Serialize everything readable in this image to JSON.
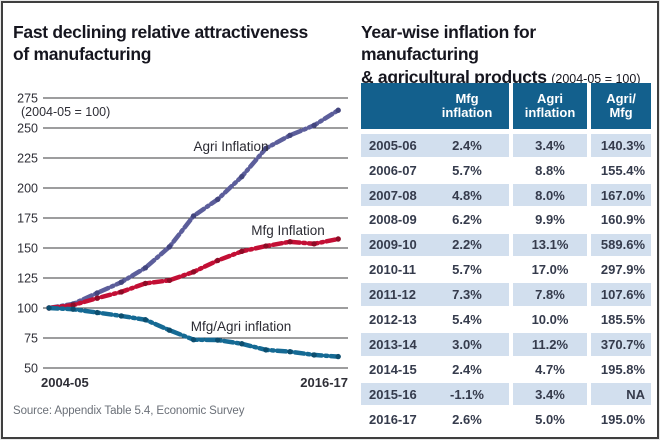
{
  "left_panel": {
    "title_line1": "Fast declining relative attractiveness",
    "title_line2": "of manufacturing",
    "source": "Source: Appendix Table 5.4, Economic Survey"
  },
  "chart_data": {
    "type": "line",
    "title": "Fast declining relative attractiveness of manufacturing",
    "note": "(2004-05 = 100)",
    "x": [
      "2004-05",
      "2005-06",
      "2006-07",
      "2007-08",
      "2008-09",
      "2009-10",
      "2010-11",
      "2011-12",
      "2012-13",
      "2013-14",
      "2014-15",
      "2015-16",
      "2016-17"
    ],
    "x_axis_shown_labels": [
      "2004-05",
      "2016-17"
    ],
    "ylim": [
      50,
      275
    ],
    "yticks": [
      275,
      250,
      225,
      200,
      175,
      150,
      125,
      100,
      75,
      50
    ],
    "grid": true,
    "series": [
      {
        "name": "Agri Inflation",
        "color": "#5c5e9b",
        "dot_color": "#43457e",
        "values": [
          100,
          103.4,
          112.5,
          121.5,
          133.5,
          151.0,
          176.7,
          190.5,
          209.5,
          233.0,
          243.9,
          252.2,
          264.8
        ]
      },
      {
        "name": "Mfg Inflation",
        "color": "#c30f35",
        "dot_color": "#8f0b26",
        "values": [
          100,
          102.4,
          108.2,
          113.4,
          120.5,
          123.1,
          130.1,
          139.6,
          147.2,
          151.6,
          155.2,
          153.5,
          157.5
        ]
      },
      {
        "name": "Mfg/Agri inflation",
        "color": "#156a94",
        "dot_color": "#0c4e6f",
        "values": [
          100,
          99.0,
          96.2,
          93.4,
          90.2,
          81.5,
          73.6,
          73.3,
          70.2,
          65.1,
          63.6,
          60.9,
          59.5
        ]
      }
    ],
    "source": "Source: Appendix Table 5.4, Economic Survey"
  },
  "table": {
    "title_line1": "Year-wise inflation for manufacturing",
    "title_line2_bold": "& agricultural products",
    "title_line2_note": "(2004-05 = 100)",
    "header": {
      "mfg": [
        "Mfg",
        "inflation"
      ],
      "agri": [
        "Agri",
        "inflation"
      ],
      "ratio": [
        "Agri/",
        "Mfg"
      ]
    },
    "rows": [
      [
        "2005-06",
        "2.4%",
        "3.4%",
        "140.3%"
      ],
      [
        "2006-07",
        "5.7%",
        "8.8%",
        "155.4%"
      ],
      [
        "2007-08",
        "4.8%",
        "8.0%",
        "167.0%"
      ],
      [
        "2008-09",
        "6.2%",
        "9.9%",
        "160.9%"
      ],
      [
        "2009-10",
        "2.2%",
        "13.1%",
        "589.6%"
      ],
      [
        "2010-11",
        "5.7%",
        "17.0%",
        "297.9%"
      ],
      [
        "2011-12",
        "7.3%",
        "7.8%",
        "107.6%"
      ],
      [
        "2012-13",
        "5.4%",
        "10.0%",
        "185.5%"
      ],
      [
        "2013-14",
        "3.0%",
        "11.2%",
        "370.7%"
      ],
      [
        "2014-15",
        "2.4%",
        "4.7%",
        "195.8%"
      ],
      [
        "2015-16",
        "-1.1%",
        "3.4%",
        "NA"
      ],
      [
        "2016-17",
        "2.6%",
        "5.0%",
        "195.0%"
      ]
    ],
    "colors": {
      "header_bg": "#13608d",
      "alt_row_bg": "#d2dfee",
      "row_text": "#353b4c"
    }
  }
}
